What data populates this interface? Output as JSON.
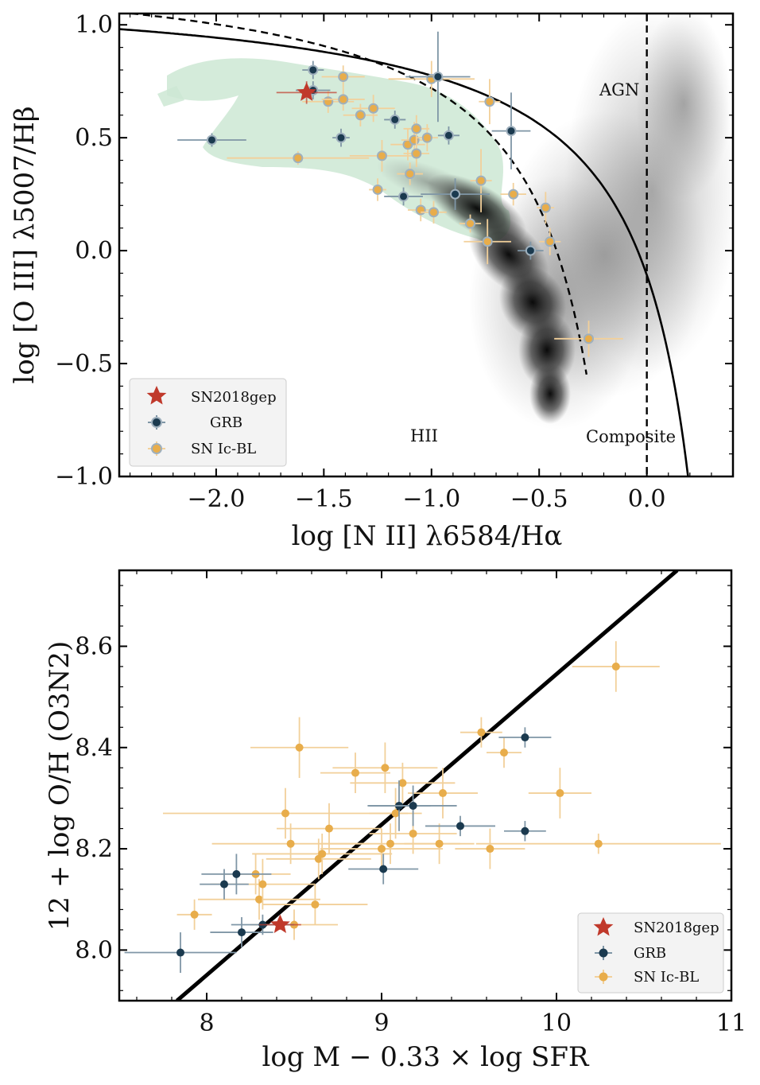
{
  "colors": {
    "sn2018gep": "#c0392b",
    "grb": "#1b3a4f",
    "grb_err": "#7f96a6",
    "snicbl": "#e8ad4b",
    "snicbl_err": "#f2d09a",
    "shade": "#cde8d3"
  },
  "chart_data": [
    {
      "type": "scatter",
      "title": "",
      "xlabel": "log [N II] λ6584/Hα",
      "ylabel": "log [O III] λ5007/Hβ",
      "xlim": [
        -2.45,
        0.4
      ],
      "ylim": [
        -1.0,
        1.05
      ],
      "xticks": [
        "−2.0",
        "−1.5",
        "−1.0",
        "−0.5",
        "0.0"
      ],
      "yticks": [
        "−1.0",
        "−0.5",
        "0.0",
        "0.5",
        "1.0"
      ],
      "region_labels": [
        "AGN",
        "HII",
        "Composite"
      ],
      "legend": {
        "items": [
          "SN2018gep",
          "GRB",
          "SN Ic-BL"
        ],
        "placement": "lower-left"
      },
      "series": [
        {
          "name": "SN2018gep",
          "marker": "star",
          "x": [
            -1.58
          ],
          "y": [
            0.7
          ],
          "xerr": [
            0.14
          ],
          "yerr": [
            0.05
          ]
        },
        {
          "name": "GRB",
          "marker": "circle",
          "x": [
            -2.02,
            -1.55,
            -1.55,
            -1.42,
            -1.17,
            -1.13,
            -0.97,
            -0.92,
            -0.63,
            -0.54,
            -0.89
          ],
          "y": [
            0.49,
            0.8,
            0.71,
            0.5,
            0.58,
            0.24,
            0.77,
            0.51,
            0.53,
            0.0,
            0.25
          ],
          "xerr": [
            0.16,
            0.05,
            0.08,
            0.04,
            0.05,
            0.09,
            0.15,
            0.05,
            0.09,
            0.06,
            0.16
          ],
          "yerr": [
            0.03,
            0.04,
            0.04,
            0.04,
            0.04,
            0.04,
            0.2,
            0.04,
            0.17,
            0.04,
            0.07
          ]
        },
        {
          "name": "SN Ic-BL",
          "marker": "circle",
          "x": [
            -1.62,
            -1.48,
            -1.41,
            -1.41,
            -1.33,
            -1.27,
            -1.25,
            -1.23,
            -1.11,
            -1.08,
            -1.05,
            -1.02,
            -1.0,
            -1.07,
            -1.1,
            -1.07,
            -0.82,
            -0.77,
            -0.74,
            -0.73,
            -0.62,
            -0.47,
            -0.45,
            -0.27,
            -0.99
          ],
          "y": [
            0.41,
            0.66,
            0.77,
            0.67,
            0.6,
            0.63,
            0.27,
            0.42,
            0.47,
            0.49,
            0.18,
            0.5,
            0.76,
            0.54,
            0.34,
            0.43,
            0.12,
            0.31,
            0.04,
            0.66,
            0.25,
            0.19,
            0.04,
            -0.39,
            0.17
          ],
          "xerr": [
            0.33,
            0.12,
            0.1,
            0.1,
            0.08,
            0.1,
            0.04,
            0.15,
            0.08,
            0.06,
            0.06,
            0.05,
            0.2,
            0.06,
            0.06,
            0.06,
            0.05,
            0.05,
            0.11,
            0.05,
            0.06,
            0.04,
            0.05,
            0.16,
            0.06
          ],
          "yerr": [
            0.03,
            0.05,
            0.05,
            0.05,
            0.05,
            0.06,
            0.05,
            0.07,
            0.07,
            0.08,
            0.05,
            0.06,
            0.08,
            0.06,
            0.05,
            0.06,
            0.04,
            0.14,
            0.1,
            0.1,
            0.05,
            0.07,
            0.06,
            0.08,
            0.05
          ]
        }
      ]
    },
    {
      "type": "scatter",
      "title": "",
      "xlabel": "log M − 0.33 × log SFR",
      "ylabel": "12 + log O/H (O3N2)",
      "xlim": [
        7.5,
        11.0
      ],
      "ylim": [
        7.9,
        8.75
      ],
      "xticks": [
        "8",
        "9",
        "10",
        "11"
      ],
      "yticks": [
        "8.0",
        "8.2",
        "8.4",
        "8.6"
      ],
      "fit_line": {
        "x": [
          7.83,
          10.69
        ],
        "y": [
          7.9,
          8.75
        ]
      },
      "legend": {
        "items": [
          "SN2018gep",
          "GRB",
          "SN Ic-BL"
        ],
        "placement": "lower-right"
      },
      "series": [
        {
          "name": "SN2018gep",
          "marker": "star",
          "x": [
            8.42
          ],
          "y": [
            8.05
          ],
          "xerr": [
            0.12
          ],
          "yerr": [
            0.01
          ]
        },
        {
          "name": "GRB",
          "marker": "circle",
          "x": [
            7.85,
            8.1,
            8.17,
            8.2,
            8.32,
            9.01,
            9.1,
            9.18,
            9.45,
            9.82,
            9.82
          ],
          "y": [
            7.995,
            8.13,
            8.15,
            8.035,
            8.05,
            8.16,
            8.285,
            8.285,
            8.245,
            8.42,
            8.235
          ],
          "xerr": [
            0.32,
            0.14,
            0.2,
            0.18,
            0.18,
            0.2,
            0.18,
            0.25,
            0.2,
            0.15,
            0.12
          ],
          "yerr": [
            0.04,
            0.03,
            0.04,
            0.03,
            0.02,
            0.03,
            0.05,
            0.04,
            0.02,
            0.02,
            0.02
          ]
        },
        {
          "name": "SN Ic-BL",
          "marker": "circle",
          "x": [
            7.93,
            8.28,
            8.3,
            8.32,
            8.45,
            8.48,
            8.53,
            8.62,
            8.64,
            8.66,
            8.7,
            8.85,
            9.0,
            9.02,
            9.05,
            9.08,
            9.12,
            9.18,
            9.33,
            9.35,
            9.57,
            9.62,
            9.7,
            10.02,
            10.24,
            10.34,
            8.5
          ],
          "y": [
            8.07,
            8.15,
            8.1,
            8.13,
            8.27,
            8.21,
            8.4,
            8.09,
            8.18,
            8.19,
            8.24,
            8.35,
            8.2,
            8.36,
            8.21,
            8.27,
            8.33,
            8.23,
            8.21,
            8.31,
            8.43,
            8.2,
            8.39,
            8.31,
            8.21,
            8.56,
            8.05
          ],
          "xerr": [
            0.1,
            0.2,
            0.35,
            0.3,
            0.7,
            0.45,
            0.28,
            0.3,
            0.3,
            0.4,
            0.3,
            0.2,
            0.35,
            0.3,
            0.4,
            0.15,
            0.3,
            0.25,
            0.2,
            0.2,
            0.12,
            0.2,
            0.1,
            0.18,
            0.7,
            0.25,
            0.25
          ],
          "yerr": [
            0.03,
            0.04,
            0.04,
            0.05,
            0.05,
            0.04,
            0.06,
            0.04,
            0.04,
            0.04,
            0.05,
            0.04,
            0.04,
            0.05,
            0.04,
            0.05,
            0.04,
            0.04,
            0.04,
            0.05,
            0.03,
            0.04,
            0.03,
            0.05,
            0.02,
            0.05,
            0.03
          ]
        }
      ]
    }
  ]
}
